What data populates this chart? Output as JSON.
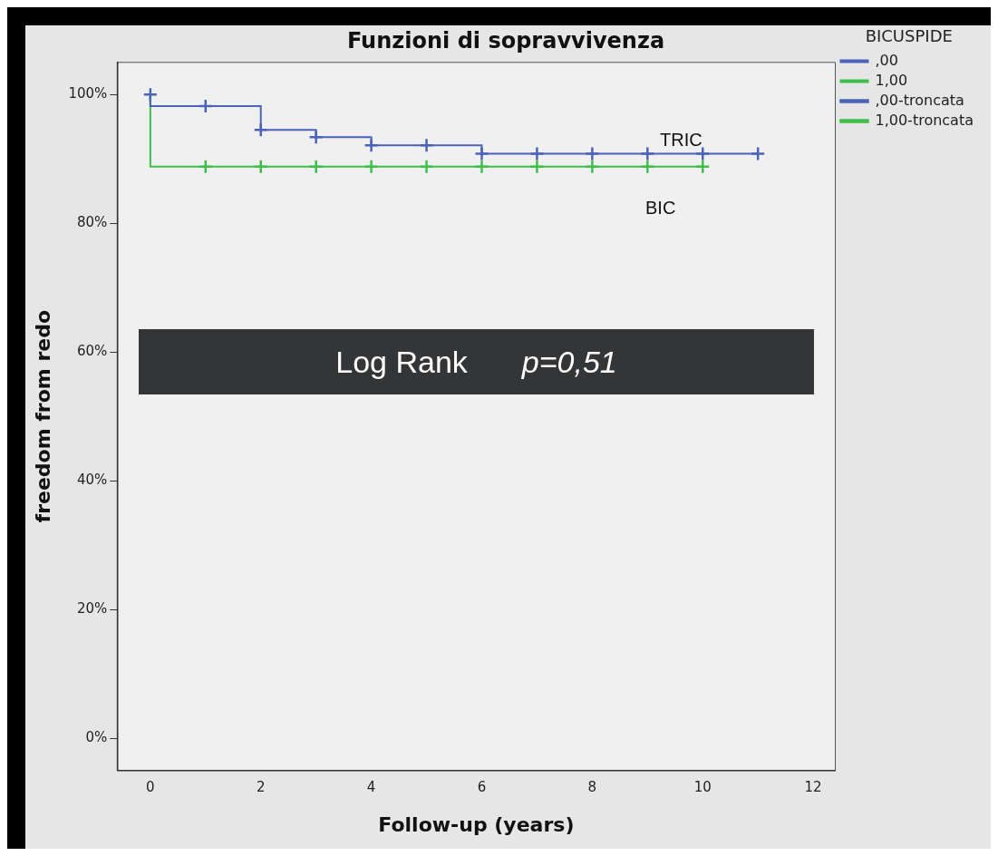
{
  "chart_data": {
    "type": "step",
    "title": "Funzioni di sopravvivenza",
    "xlabel": "Follow-up (years)",
    "ylabel": "freedom from redo",
    "legend_title": "BICUSPIDE",
    "series": [
      {
        "name": ",00",
        "color": "#4a63b8",
        "x": [
          0,
          0,
          2,
          3,
          4,
          6,
          11
        ],
        "values": [
          100,
          98.2,
          94.5,
          93.4,
          92.1,
          90.8,
          90.8
        ],
        "marker": "none"
      },
      {
        "name": "1,00",
        "color": "#3fbf4a",
        "x": [
          0,
          0,
          10
        ],
        "values": [
          100,
          88.8,
          88.8
        ],
        "marker": "none"
      },
      {
        "name": ",00-troncata",
        "type": "scatter",
        "color": "#4a63b8",
        "x": [
          0,
          1,
          2,
          3,
          4,
          5,
          6,
          7,
          8,
          9,
          10,
          11
        ],
        "values": [
          100,
          98.2,
          94.5,
          93.4,
          92.1,
          92.1,
          90.8,
          90.8,
          90.8,
          90.8,
          90.8,
          90.8
        ],
        "marker": "cross"
      },
      {
        "name": "1,00-troncata",
        "type": "scatter",
        "color": "#3fbf4a",
        "x": [
          1,
          2,
          3,
          4,
          5,
          6,
          7,
          8,
          9,
          10
        ],
        "values": [
          88.8,
          88.8,
          88.8,
          88.8,
          88.8,
          88.8,
          88.8,
          88.8,
          88.8,
          88.8
        ],
        "marker": "cross"
      }
    ],
    "annotations": [
      "TRIC",
      "BIC",
      "Log Rank",
      "p=0,51"
    ],
    "xlim": [
      -0.6,
      12.4
    ],
    "xticks": [
      0,
      2,
      4,
      6,
      8,
      10,
      12
    ],
    "ylim": [
      -5,
      105
    ],
    "yticks": [
      {
        "value": 0,
        "label": "0%"
      },
      {
        "value": 20,
        "label": "20%"
      },
      {
        "value": 40,
        "label": "40%"
      },
      {
        "value": 60,
        "label": "60%"
      },
      {
        "value": 80,
        "label": "80%"
      },
      {
        "value": 100,
        "label": "100%"
      }
    ],
    "grid": false,
    "legend": "top right"
  }
}
